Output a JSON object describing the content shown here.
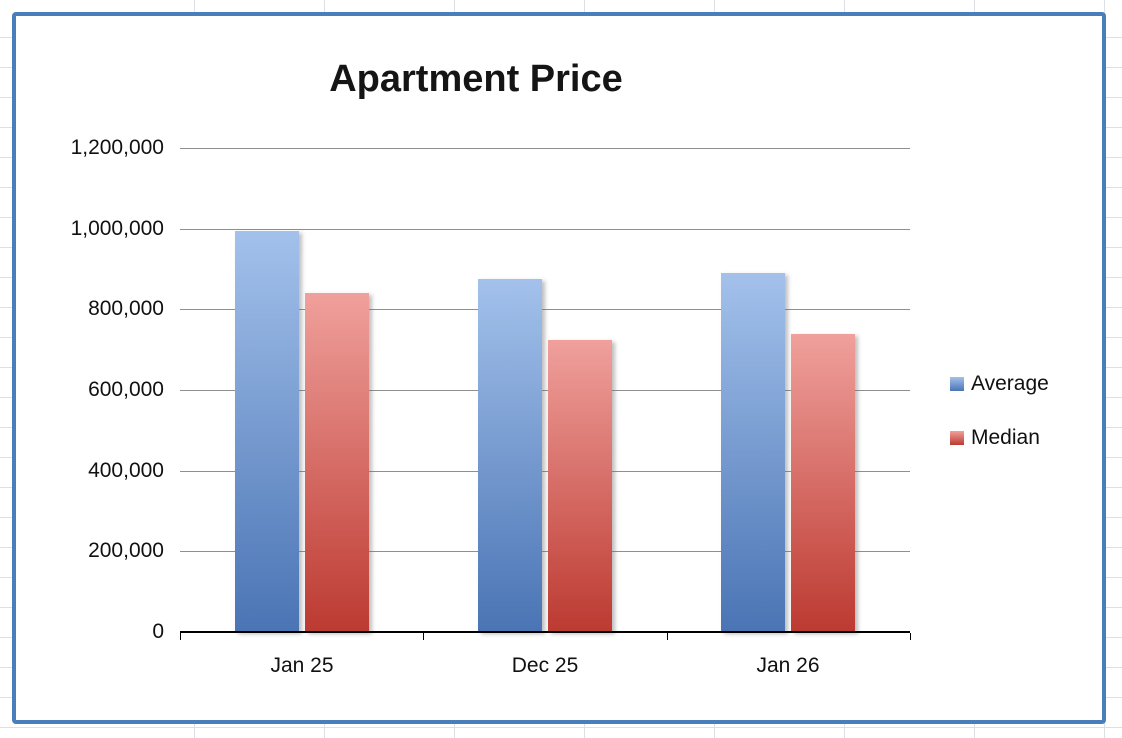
{
  "chart_frame": {
    "border_color": "#4a7eba",
    "background": "#ffffff"
  },
  "spreadsheet": {
    "grid_line_color": "#dce0e5"
  },
  "chart_data": {
    "type": "bar",
    "title": "Apartment Price",
    "categories": [
      "Jan 25",
      "Dec 25",
      "Jan 26"
    ],
    "series": [
      {
        "name": "Average",
        "values": [
          995000,
          875000,
          890000
        ],
        "color_top": "#a3c1eb",
        "color_bottom": "#4a74b4",
        "legend_color": "#6f94cf"
      },
      {
        "name": "Median",
        "values": [
          840000,
          725000,
          740000
        ],
        "color_top": "#f0a09c",
        "color_bottom": "#bc3a31",
        "legend_color": "#d5625d"
      }
    ],
    "ylim": [
      0,
      1200000
    ],
    "ytick_interval": 200000,
    "ytick_labels": [
      "0",
      "200,000",
      "400,000",
      "600,000",
      "800,000",
      "1,000,000",
      "1,200,000"
    ],
    "grid": true,
    "legend_position": "right"
  }
}
